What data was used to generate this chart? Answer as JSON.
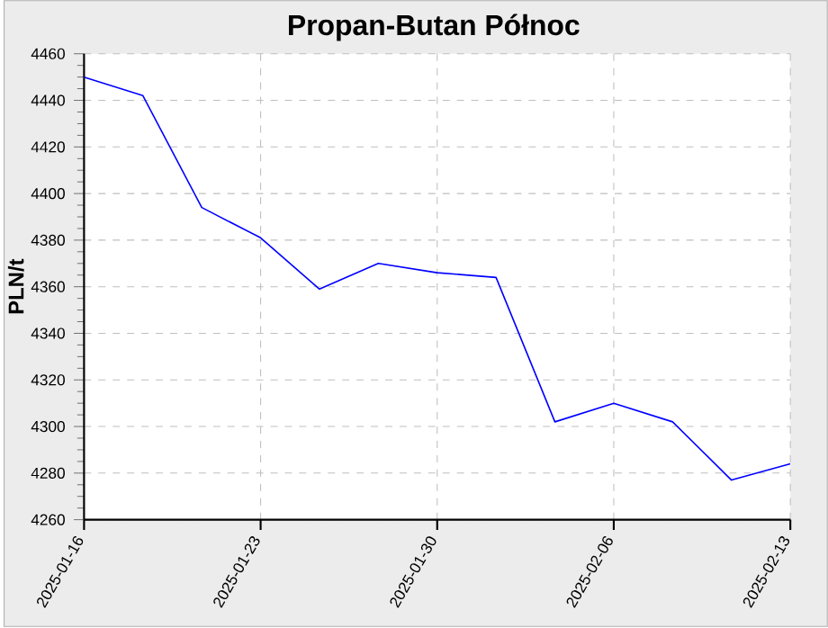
{
  "chart_data": {
    "type": "line",
    "title": "Propan-Butan Północ",
    "ylabel": "PLN/t",
    "categories": [
      "2025-01-16",
      null,
      null,
      "2025-01-23",
      null,
      null,
      "2025-01-30",
      null,
      null,
      "2025-02-06",
      null,
      null,
      "2025-02-13"
    ],
    "series": [
      {
        "color": "#0000ff",
        "values": [
          4450,
          4442,
          4394,
          4381,
          4359,
          4370,
          4366,
          4364,
          4302,
          4310,
          4302,
          4277,
          4284
        ]
      }
    ],
    "ylim": [
      4260,
      4460
    ],
    "yticks": [
      4260,
      4280,
      4300,
      4320,
      4340,
      4360,
      4380,
      4400,
      4420,
      4440,
      4460
    ],
    "grid": true,
    "marker": "none",
    "line_style": "solid"
  }
}
